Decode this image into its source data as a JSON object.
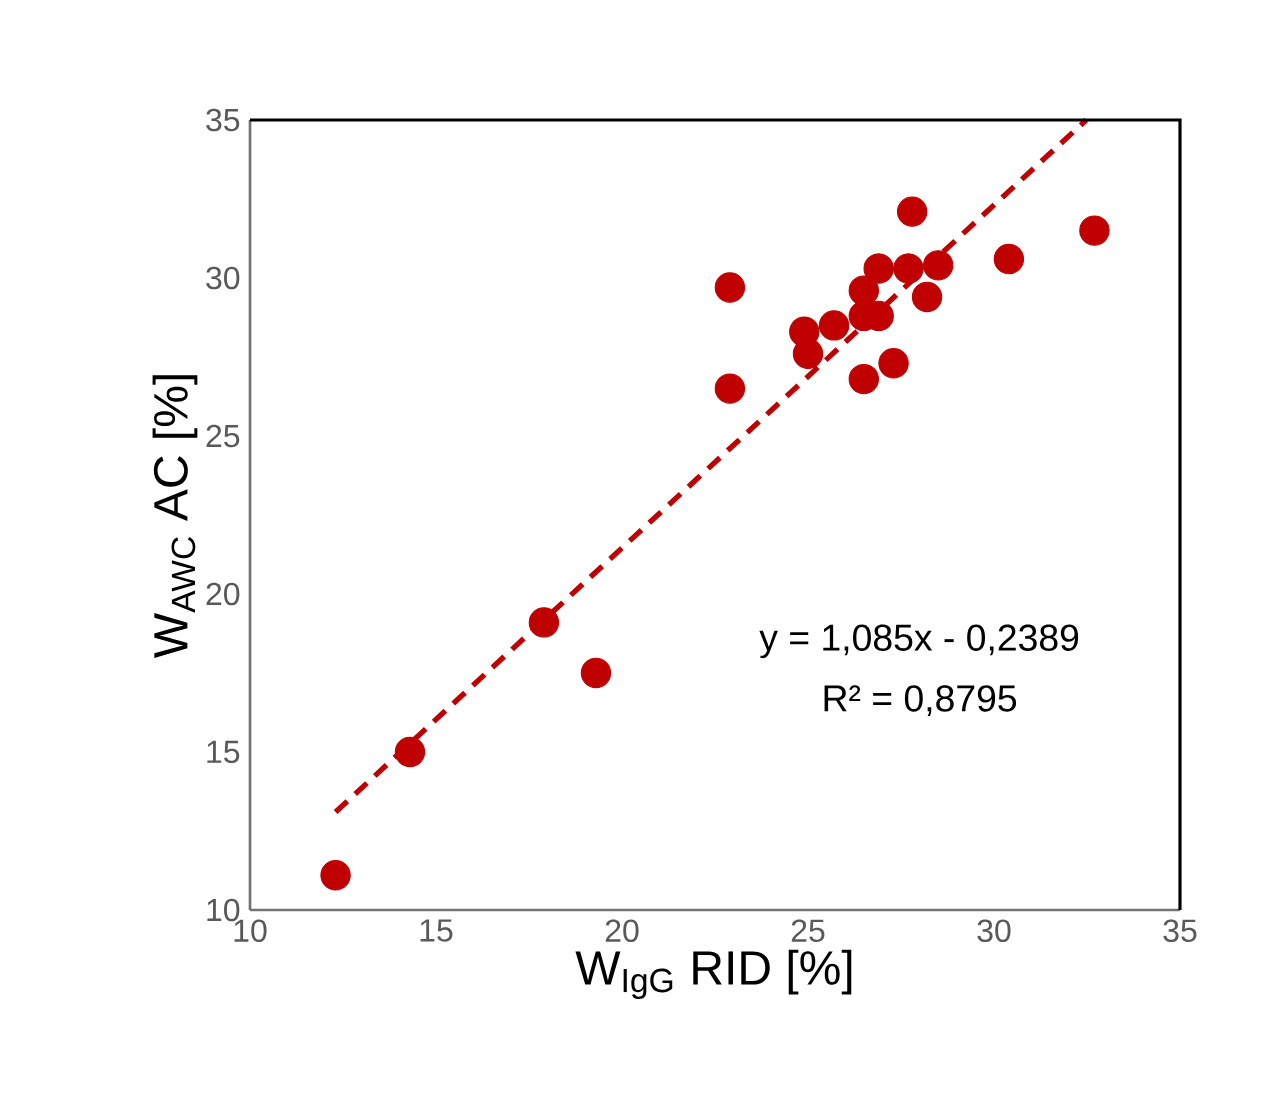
{
  "chart_data": {
    "type": "scatter",
    "xlabel": "W$_{IgG}$ RID [%]",
    "ylabel": "W$_{AWC}$ AC [%]",
    "xlim": [
      10,
      35
    ],
    "ylim": [
      10,
      35
    ],
    "xticks": [
      10,
      15,
      20,
      25,
      30,
      35
    ],
    "yticks": [
      10,
      15,
      20,
      25,
      30,
      35
    ],
    "grid": false,
    "marker": "circle",
    "series": [
      {
        "color": "#c00000",
        "x": [
          12.3,
          14.3,
          17.9,
          19.3,
          22.9,
          22.9,
          24.9,
          25.0,
          25.7,
          26.5,
          26.5,
          26.9,
          26.9,
          27.7,
          27.8,
          28.5,
          28.2,
          27.3,
          26.5,
          30.4,
          32.7
        ],
        "values": [
          11.1,
          15.0,
          19.1,
          17.5,
          29.7,
          26.5,
          28.3,
          27.6,
          28.5,
          29.6,
          28.8,
          28.8,
          30.3,
          30.3,
          32.1,
          30.4,
          29.4,
          27.3,
          26.8,
          30.6,
          31.5
        ]
      },
      {
        "type": "line",
        "color": "#c00000",
        "line_style": "dashed",
        "marker": "none",
        "x": [
          12.3,
          32.48
        ],
        "values": [
          13.1,
          35.0
        ]
      }
    ],
    "annotations": [
      "y = 1,085x - 0,2389",
      "R² = 0,8795"
    ]
  }
}
